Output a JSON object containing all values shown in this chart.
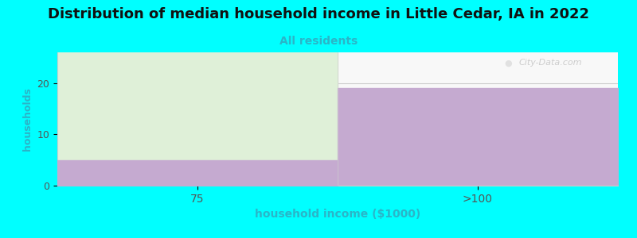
{
  "title": "Distribution of median household income in Little Cedar, IA in 2022",
  "subtitle": "All residents",
  "xlabel": "household income ($1000)",
  "ylabel": "households",
  "categories": [
    "75",
    ">100"
  ],
  "bar1_value": 5,
  "bar2_value": 19,
  "bar1_green": "#dff0d8",
  "bar1_purple": "#c5aad0",
  "bar2_purple": "#c5aad0",
  "plot_bg_left": "#eaf5e4",
  "ylim": [
    0,
    26
  ],
  "yticks": [
    0,
    10,
    20
  ],
  "bg_color": "#00FFFF",
  "plot_bg": "#f8f8f8",
  "title_fontsize": 13,
  "subtitle_fontsize": 10,
  "subtitle_color": "#2ab5c8",
  "axis_label_color": "#2ab5c8",
  "watermark": "City-Data.com"
}
